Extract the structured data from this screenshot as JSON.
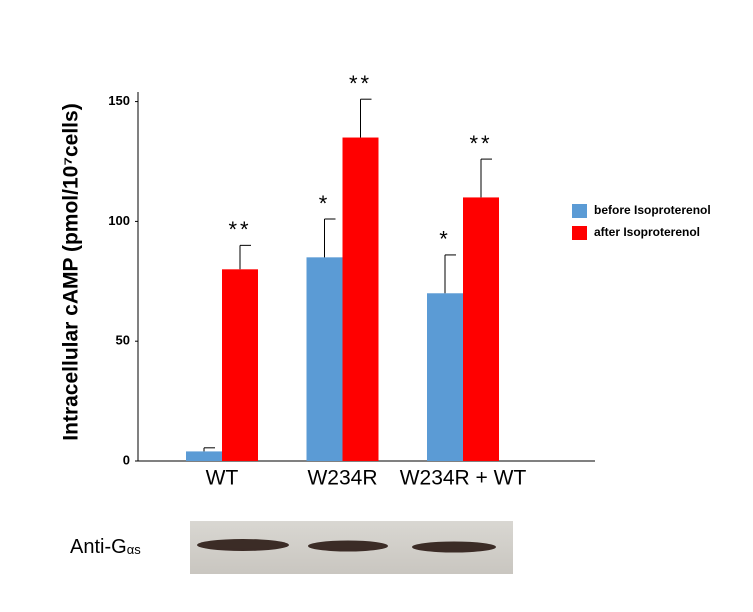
{
  "chart_data": {
    "type": "bar",
    "y_label": "Intracellular cAMP (pmol/10⁷cells)",
    "categories": [
      "WT",
      "W234R",
      "W234R + WT"
    ],
    "series": [
      {
        "name": "before Isoproterenol",
        "color": "#5b9bd5",
        "values": [
          4,
          85,
          70
        ],
        "errors": [
          1.5,
          16,
          16
        ],
        "significance": [
          null,
          "*",
          "*"
        ]
      },
      {
        "name": "after Isoproterenol",
        "color": "#ff0000",
        "values": [
          80,
          135,
          110
        ],
        "errors": [
          10,
          16,
          16
        ],
        "significance": [
          "**",
          "**",
          "**"
        ]
      }
    ],
    "ylim": [
      0,
      154
    ],
    "yticks": [
      0,
      50,
      100,
      150
    ],
    "legend": "right"
  },
  "blot": {
    "label": "Anti-G",
    "label_subscript": "αs"
  }
}
